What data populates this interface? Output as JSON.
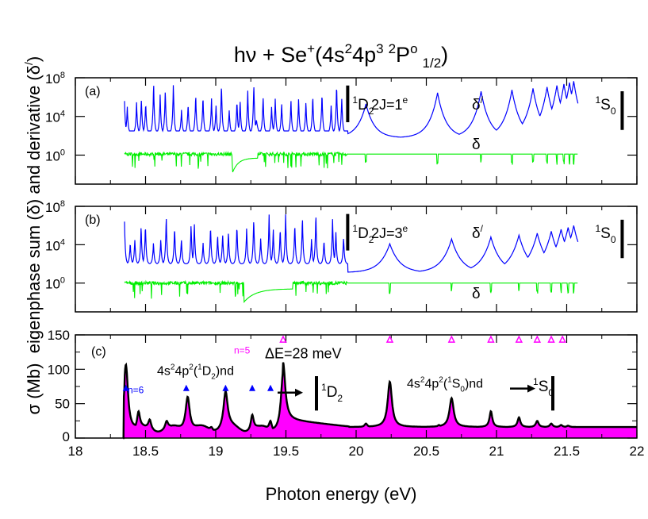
{
  "chart_data": {
    "type": "line",
    "title": {
      "prefix": "hν + Se",
      "ion_charge": "+",
      "config": "(4s",
      "s_exp": "2",
      "p_part": "4p",
      "p_exp": "3",
      "mult": "2",
      "term": "P",
      "term_sup": "o",
      "j": "1/2",
      "suffix": ")"
    },
    "shared_ylabel": {
      "line1": "eigenphase sum (δ) and derivative (δ",
      "prime": "/",
      "close": ")"
    },
    "xaxis": {
      "label": "Photon energy (eV)",
      "range": [
        18,
        22
      ],
      "ticks": [
        18,
        18.5,
        19,
        19.5,
        20,
        20.5,
        21,
        21.5,
        22
      ],
      "tick_labels": [
        "18",
        "18.5",
        "19",
        "19.5",
        "20",
        "20.5",
        "21",
        "21.5",
        "22"
      ]
    },
    "panels": [
      {
        "id": "a",
        "label": "(a)",
        "symmetry_text": "2J=1",
        "symmetry_sup": "e",
        "yscale": "log",
        "ylim_exp": [
          -3,
          8
        ],
        "yticks": [
          {
            "base": "10",
            "exp": "0"
          },
          {
            "base": "10",
            "exp": "4"
          },
          {
            "base": "10",
            "exp": "8"
          }
        ],
        "threshold_D": {
          "energy": 19.94,
          "label": "1",
          "letter": "D",
          "sub": "2"
        },
        "threshold_S": {
          "energy": 21.85,
          "label": "1",
          "letter": "S",
          "sub": "0"
        },
        "series": [
          {
            "name": "δ/",
            "color": "#0000ff",
            "label_main": "δ",
            "label_sup": "/",
            "resonances_above_D": [
              20.07,
              20.58,
              20.89,
              21.11,
              21.26,
              21.36,
              21.43,
              21.48,
              21.52,
              21.55
            ]
          },
          {
            "name": "δ",
            "color": "#00ee00",
            "label_main": "δ"
          }
        ]
      },
      {
        "id": "b",
        "label": "(b)",
        "symmetry_text": "2J=3",
        "symmetry_sup": "e",
        "yscale": "log",
        "ylim_exp": [
          -3,
          8
        ],
        "yticks": [
          {
            "base": "10",
            "exp": "0"
          },
          {
            "base": "10",
            "exp": "4"
          },
          {
            "base": "10",
            "exp": "8"
          }
        ],
        "threshold_D": {
          "energy": 19.94,
          "label": "1",
          "letter": "D",
          "sub": "2"
        },
        "threshold_S": {
          "energy": 21.85,
          "label": "1",
          "letter": "S",
          "sub": "0"
        },
        "series": [
          {
            "name": "δ/",
            "color": "#0000ff",
            "label_main": "δ",
            "label_sup": "/",
            "resonances_above_D": [
              20.24,
              20.68,
              20.96,
              21.16,
              21.29,
              21.39,
              21.46,
              21.51,
              21.55
            ]
          },
          {
            "name": "δ",
            "color": "#00ee00",
            "label_main": "δ"
          }
        ]
      },
      {
        "id": "c",
        "label": "(c)",
        "ylabel": "σ (Mb)",
        "yscale": "linear",
        "ylim": [
          0,
          150
        ],
        "yticks": [
          0,
          50,
          100,
          150
        ],
        "ytick_labels": [
          "0",
          "50",
          "100",
          "150"
        ],
        "fill_color": "#ff00ff",
        "line_color": "#000000",
        "peaks": [
          {
            "x": 18.36,
            "y": 107
          },
          {
            "x": 18.45,
            "y": 39
          },
          {
            "x": 18.53,
            "y": 27
          },
          {
            "x": 18.65,
            "y": 25
          },
          {
            "x": 18.8,
            "y": 60
          },
          {
            "x": 18.97,
            "y": 16
          },
          {
            "x": 19.07,
            "y": 68
          },
          {
            "x": 19.26,
            "y": 34
          },
          {
            "x": 19.39,
            "y": 25
          },
          {
            "x": 19.48,
            "y": 110
          },
          {
            "x": 20.07,
            "y": 21
          },
          {
            "x": 20.24,
            "y": 82
          },
          {
            "x": 20.59,
            "y": 19
          },
          {
            "x": 20.68,
            "y": 58
          },
          {
            "x": 20.96,
            "y": 39
          },
          {
            "x": 21.16,
            "y": 30
          },
          {
            "x": 21.29,
            "y": 25
          },
          {
            "x": 21.39,
            "y": 21
          },
          {
            "x": 21.46,
            "y": 19
          },
          {
            "x": 21.51,
            "y": 18
          }
        ],
        "markers_1D2": {
          "color": "#0000ff",
          "shape": "filled-triangle",
          "energies": [
            18.36,
            18.79,
            19.07,
            19.26,
            19.39
          ],
          "y": 73
        },
        "markers_1S0": {
          "color": "#ff00ff",
          "shape": "open-triangle",
          "energies": [
            19.48,
            20.24,
            20.68,
            20.96,
            21.16,
            21.29,
            21.39,
            21.47
          ],
          "y": 143
        },
        "annotations": {
          "n6": "n=6",
          "n5": "n=5",
          "deltaE": "ΔE=28 meV",
          "series_D": {
            "a": "4s",
            "a_sup": "2",
            "b": "4p",
            "b_sup": "2",
            "c": "(",
            "c_sup": "1",
            "d": "D",
            "d_sub": "2",
            "e": ")nd"
          },
          "series_S": {
            "a": "4s",
            "a_sup": "2",
            "b": "4p",
            "b_sup": "2",
            "c": "(",
            "c_sup": "1",
            "d": "S",
            "d_sub": "0",
            "e": ")nd"
          },
          "threshold_D": {
            "sup": "1",
            "letter": "D",
            "sub": "2"
          },
          "threshold_S": {
            "sup": "1",
            "letter": "S",
            "sub": "0"
          }
        }
      }
    ]
  }
}
